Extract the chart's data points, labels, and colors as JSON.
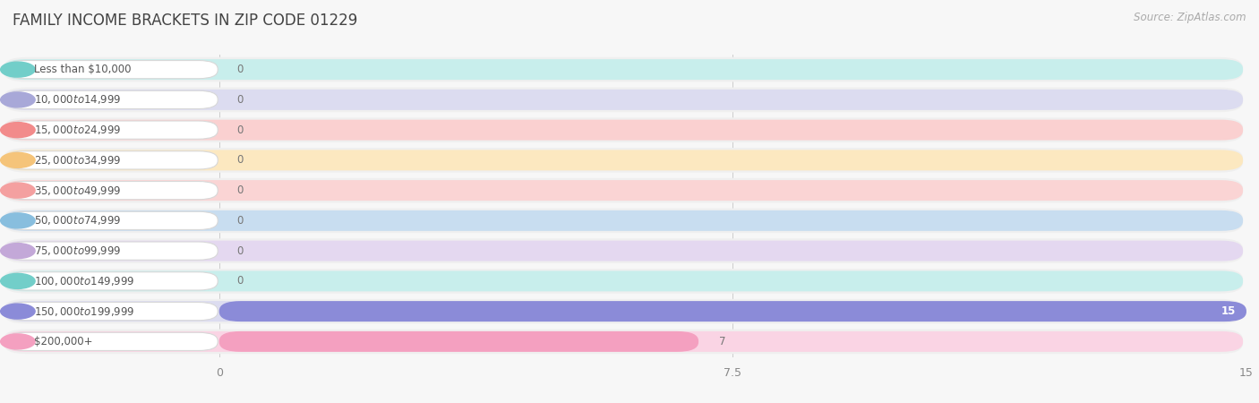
{
  "title": "FAMILY INCOME BRACKETS IN ZIP CODE 01229",
  "source": "Source: ZipAtlas.com",
  "categories": [
    "Less than $10,000",
    "$10,000 to $14,999",
    "$15,000 to $24,999",
    "$25,000 to $34,999",
    "$35,000 to $49,999",
    "$50,000 to $74,999",
    "$75,000 to $99,999",
    "$100,000 to $149,999",
    "$150,000 to $199,999",
    "$200,000+"
  ],
  "values": [
    0,
    0,
    0,
    0,
    0,
    0,
    0,
    0,
    15,
    7
  ],
  "bar_colors": [
    "#72CEC9",
    "#A8A8D8",
    "#F28B8B",
    "#F5C47A",
    "#F4A0A0",
    "#88BEDE",
    "#C3A8D8",
    "#72CEC9",
    "#8B8BD8",
    "#F4A0C0"
  ],
  "bar_bg_colors": [
    "#C8EEEC",
    "#DCDCF0",
    "#FAD0D0",
    "#FCE8C0",
    "#FAD4D4",
    "#C8DDF0",
    "#E4D8F0",
    "#C8EEEC",
    "#DCDCF0",
    "#FAD4E4"
  ],
  "row_bg_color": "#efefef",
  "xlim": [
    0,
    15
  ],
  "xticks": [
    0,
    7.5,
    15
  ],
  "background_color": "#f7f7f7",
  "title_fontsize": 12,
  "source_fontsize": 8.5
}
